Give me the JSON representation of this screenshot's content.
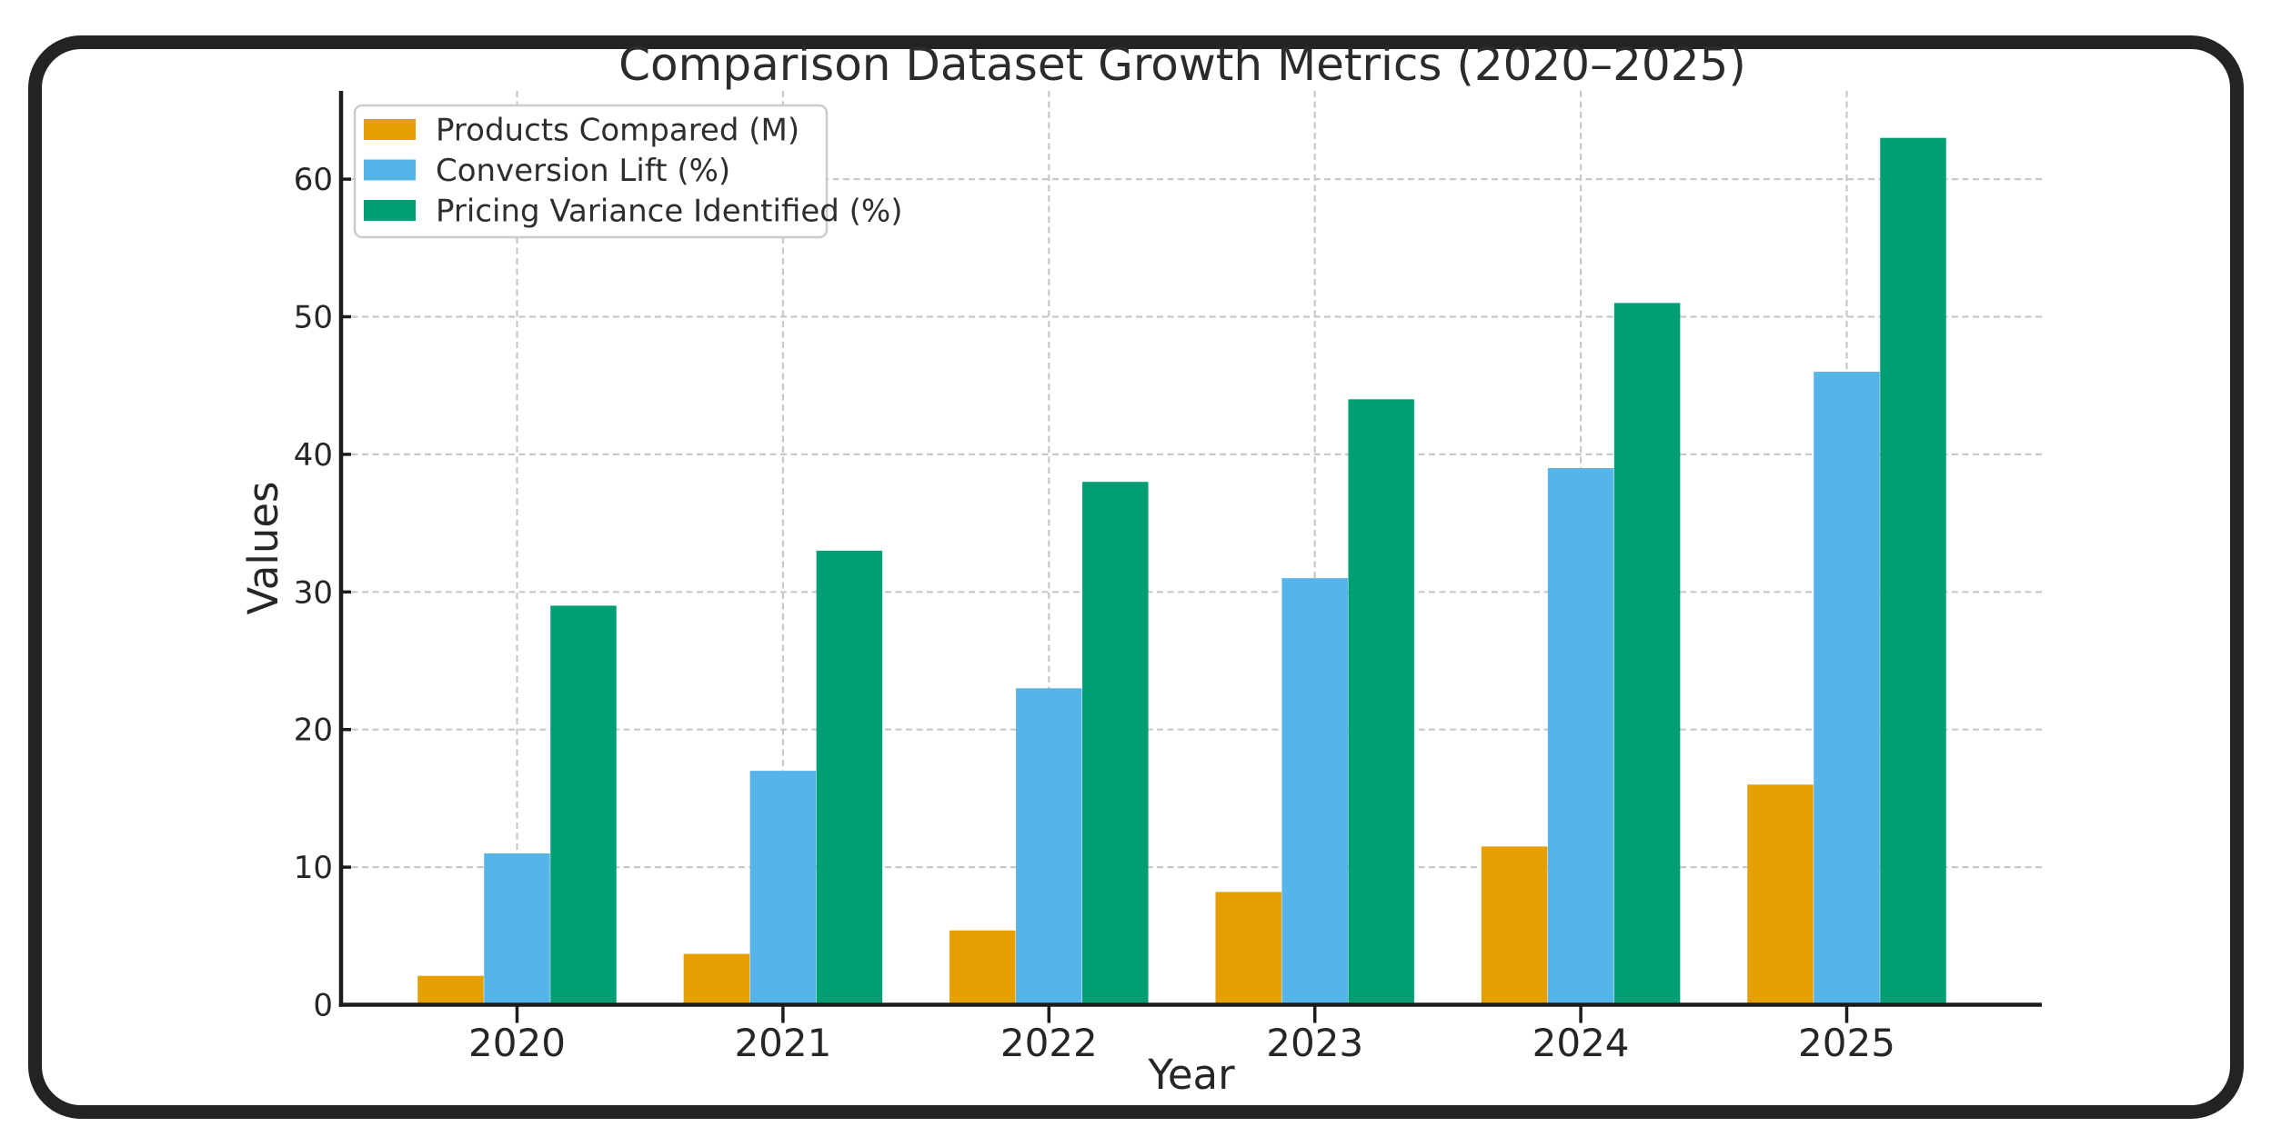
{
  "chart_data": {
    "type": "bar",
    "title": "Comparison Dataset Growth Metrics (2020–2025)",
    "xlabel": "Year",
    "ylabel": "Values",
    "categories": [
      "2020",
      "2021",
      "2022",
      "2023",
      "2024",
      "2025"
    ],
    "series": [
      {
        "name": "Products Compared (M)",
        "color": "#E69F00",
        "values": [
          2.1,
          3.7,
          5.4,
          8.2,
          11.5,
          16
        ]
      },
      {
        "name": "Conversion Lift (%)",
        "color": "#56B4E9",
        "values": [
          11,
          17,
          23,
          31,
          39,
          46
        ]
      },
      {
        "name": "Pricing Variance Identified (%)",
        "color": "#009E73",
        "values": [
          29,
          33,
          38,
          44,
          51,
          63
        ]
      }
    ],
    "ylim": [
      0,
      66
    ],
    "yticks": [
      0,
      10,
      20,
      30,
      40,
      50,
      60
    ],
    "grid": true,
    "grid_style": "dashed",
    "legend_position": "upper left"
  },
  "colors": {
    "background": "#ffffff",
    "frame": "#232323",
    "spine": "#1c1c1c",
    "grid": "#c8c8c8",
    "title_text": "#2b2b2b",
    "tick_text": "#262626",
    "legend_text": "#2e2e2e",
    "legend_border": "#cccccc",
    "legend_fill": "#ffffff"
  }
}
